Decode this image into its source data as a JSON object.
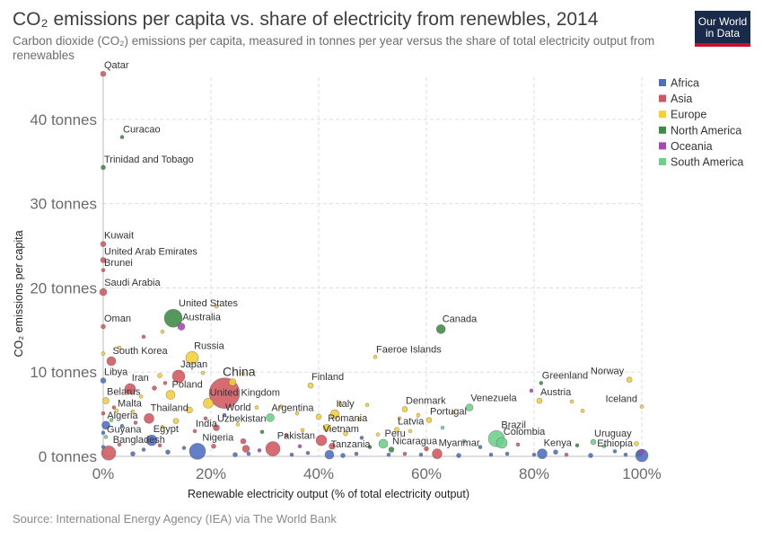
{
  "header": {
    "title": "CO₂ emissions per capita vs. share of electricity from renewbles, 2014",
    "subtitle": "Carbon dioxide (CO₂) emissions per capita, measured in tonnes per year versus the share of total electricity output from renewables",
    "logo_line1": "Our World",
    "logo_line2": "in Data"
  },
  "footer": {
    "source": "Source: International Energy Agency (IEA) via The World Bank"
  },
  "chart_data": {
    "type": "scatter",
    "xlabel": "Renewable electricity output (% of total electricity output)",
    "ylabel": "CO₂ emissions per capita",
    "xlim": [
      0,
      100
    ],
    "ylim": [
      0,
      45
    ],
    "x_ticks": [
      {
        "v": 0,
        "label": "0%"
      },
      {
        "v": 20,
        "label": "20%"
      },
      {
        "v": 40,
        "label": "40%"
      },
      {
        "v": 60,
        "label": "60%"
      },
      {
        "v": 80,
        "label": "80%"
      },
      {
        "v": 100,
        "label": "100%"
      }
    ],
    "y_ticks": [
      {
        "v": 0,
        "label": "0 tonnes"
      },
      {
        "v": 10,
        "label": "10 tonnes"
      },
      {
        "v": 20,
        "label": "20 tonnes"
      },
      {
        "v": 30,
        "label": "30 tonnes"
      },
      {
        "v": 40,
        "label": "40 tonnes"
      }
    ],
    "grid": true,
    "legend_position": "right",
    "regions": [
      {
        "name": "Africa",
        "color": "#4c6ec3"
      },
      {
        "name": "Asia",
        "color": "#d0565f"
      },
      {
        "name": "Europe",
        "color": "#f5cf35"
      },
      {
        "name": "North America",
        "color": "#3f8a46"
      },
      {
        "name": "Oceania",
        "color": "#a648b8"
      },
      {
        "name": "South America",
        "color": "#6ccf8a"
      }
    ],
    "labeled_points": [
      {
        "name": "Qatar",
        "x": 0,
        "y": 45.4,
        "region": "Asia",
        "size": 3
      },
      {
        "name": "Curacao",
        "x": 3.5,
        "y": 37.9,
        "region": "North America",
        "size": 2
      },
      {
        "name": "Trinidad and Tobago",
        "x": 0,
        "y": 34.3,
        "region": "North America",
        "size": 2.5
      },
      {
        "name": "Kuwait",
        "x": 0,
        "y": 25.2,
        "region": "Asia",
        "size": 3
      },
      {
        "name": "United Arab Emirates",
        "x": 0,
        "y": 23.3,
        "region": "Asia",
        "size": 3
      },
      {
        "name": "Brunei",
        "x": 0,
        "y": 22.1,
        "region": "Asia",
        "size": 2
      },
      {
        "name": "Saudi Arabia",
        "x": 0,
        "y": 19.5,
        "region": "Asia",
        "size": 4
      },
      {
        "name": "United States",
        "x": 13,
        "y": 16.4,
        "region": "North America",
        "size": 10
      },
      {
        "name": "Australia",
        "x": 14.5,
        "y": 15.4,
        "region": "Oceania",
        "size": 4
      },
      {
        "name": "Oman",
        "x": 0,
        "y": 15.4,
        "region": "Asia",
        "size": 2.5
      },
      {
        "name": "Canada",
        "x": 62.7,
        "y": 15.1,
        "region": "North America",
        "size": 5
      },
      {
        "name": "South Korea",
        "x": 1.5,
        "y": 11.3,
        "region": "Asia",
        "size": 5
      },
      {
        "name": "Russia",
        "x": 16.5,
        "y": 11.7,
        "region": "Europe",
        "size": 7
      },
      {
        "name": "Faeroe Islands",
        "x": 50.5,
        "y": 11.8,
        "region": "Europe",
        "size": 2
      },
      {
        "name": "Japan",
        "x": 14,
        "y": 9.5,
        "region": "Asia",
        "size": 7
      },
      {
        "name": "Libya",
        "x": 0,
        "y": 9.0,
        "region": "Africa",
        "size": 3
      },
      {
        "name": "China",
        "x": 22.5,
        "y": 7.5,
        "region": "Asia",
        "size": 17
      },
      {
        "name": "Finland",
        "x": 38.5,
        "y": 8.4,
        "region": "Europe",
        "size": 3
      },
      {
        "name": "Greenland",
        "x": 81.3,
        "y": 8.7,
        "region": "North America",
        "size": 2
      },
      {
        "name": "Norway",
        "x": 97.7,
        "y": 9.1,
        "region": "Europe",
        "size": 3
      },
      {
        "name": "Iran",
        "x": 5,
        "y": 8.0,
        "region": "Asia",
        "size": 6
      },
      {
        "name": "Poland",
        "x": 12.5,
        "y": 7.3,
        "region": "Europe",
        "size": 5
      },
      {
        "name": "Austria",
        "x": 81,
        "y": 6.6,
        "region": "Europe",
        "size": 3
      },
      {
        "name": "Iceland",
        "x": 100,
        "y": 5.9,
        "region": "Europe",
        "size": 2
      },
      {
        "name": "Belarus",
        "x": 0.5,
        "y": 6.6,
        "region": "Europe",
        "size": 3.5
      },
      {
        "name": "United Kingdom",
        "x": 19.5,
        "y": 6.3,
        "region": "Europe",
        "size": 5.5
      },
      {
        "name": "Denmark",
        "x": 56,
        "y": 5.6,
        "region": "Europe",
        "size": 3
      },
      {
        "name": "Venezuela",
        "x": 68,
        "y": 5.8,
        "region": "South America",
        "size": 4
      },
      {
        "name": "World",
        "x": 22.5,
        "y": 4.9,
        "region": "Africa",
        "size": 2
      },
      {
        "name": "Malta",
        "x": 2.5,
        "y": 5.4,
        "region": "Europe",
        "size": 2
      },
      {
        "name": "Thailand",
        "x": 8.5,
        "y": 4.5,
        "region": "Asia",
        "size": 5.5
      },
      {
        "name": "Argentina",
        "x": 31,
        "y": 4.6,
        "region": "South America",
        "size": 4.5
      },
      {
        "name": "Italy",
        "x": 43,
        "y": 5.0,
        "region": "Europe",
        "size": 5
      },
      {
        "name": "Portugal",
        "x": 60.5,
        "y": 4.3,
        "region": "Europe",
        "size": 3
      },
      {
        "name": "Algeria",
        "x": 0.5,
        "y": 3.7,
        "region": "Africa",
        "size": 4.5
      },
      {
        "name": "India",
        "x": 17,
        "y": 3.0,
        "region": "Asia",
        "size": 2
      },
      {
        "name": "Uzbekistan",
        "x": 21,
        "y": 3.4,
        "region": "Asia",
        "size": 3.5
      },
      {
        "name": "Romania",
        "x": 41.5,
        "y": 3.4,
        "region": "Europe",
        "size": 4
      },
      {
        "name": "Latvia",
        "x": 54.5,
        "y": 3.2,
        "region": "Europe",
        "size": 2.5
      },
      {
        "name": "Guyana",
        "x": 0.5,
        "y": 2.3,
        "region": "South America",
        "size": 2
      },
      {
        "name": "Egypt",
        "x": 9,
        "y": 1.9,
        "region": "Africa",
        "size": 6
      },
      {
        "name": "Vietnam",
        "x": 40.5,
        "y": 1.9,
        "region": "Asia",
        "size": 6
      },
      {
        "name": "Pakistan",
        "x": 31.5,
        "y": 0.9,
        "region": "Asia",
        "size": 8
      },
      {
        "name": "Brazil",
        "x": 73,
        "y": 2.1,
        "region": "South America",
        "size": 9
      },
      {
        "name": "Colombia",
        "x": 74,
        "y": 1.6,
        "region": "South America",
        "size": 6
      },
      {
        "name": "Bangladesh",
        "x": 1,
        "y": 0.4,
        "region": "Asia",
        "size": 8
      },
      {
        "name": "Nigeria",
        "x": 17.5,
        "y": 0.6,
        "region": "Africa",
        "size": 9
      },
      {
        "name": "Peru",
        "x": 52,
        "y": 1.5,
        "region": "South America",
        "size": 5
      },
      {
        "name": "Uruguay",
        "x": 91,
        "y": 1.7,
        "region": "South America",
        "size": 3
      },
      {
        "name": "Tanzania",
        "x": 42,
        "y": 0.2,
        "region": "Africa",
        "size": 5
      },
      {
        "name": "Nicaragua",
        "x": 53.5,
        "y": 0.8,
        "region": "North America",
        "size": 3
      },
      {
        "name": "Myanmar",
        "x": 62,
        "y": 0.3,
        "region": "Asia",
        "size": 5.5
      },
      {
        "name": "Kenya",
        "x": 81.5,
        "y": 0.3,
        "region": "Africa",
        "size": 5.5
      },
      {
        "name": "Ethiopia",
        "x": 100,
        "y": 0.1,
        "region": "Africa",
        "size": 7
      }
    ],
    "other_points": [
      {
        "x": 0,
        "y": 12.2,
        "region": "Europe",
        "size": 2
      },
      {
        "x": 3,
        "y": 12.9,
        "region": "Europe",
        "size": 2
      },
      {
        "x": 7.5,
        "y": 14.2,
        "region": "Asia",
        "size": 2
      },
      {
        "x": 11,
        "y": 14.8,
        "region": "Europe",
        "size": 2
      },
      {
        "x": 21,
        "y": 17.8,
        "region": "Europe",
        "size": 2
      },
      {
        "x": 10.5,
        "y": 9.6,
        "region": "Europe",
        "size": 2.5
      },
      {
        "x": 18.5,
        "y": 9.9,
        "region": "Europe",
        "size": 2
      },
      {
        "x": 11.5,
        "y": 8.7,
        "region": "Asia",
        "size": 2
      },
      {
        "x": 9.5,
        "y": 8.1,
        "region": "Asia",
        "size": 2.5
      },
      {
        "x": 24,
        "y": 8.8,
        "region": "Europe",
        "size": 4
      },
      {
        "x": 26,
        "y": 9.8,
        "region": "Europe",
        "size": 2
      },
      {
        "x": 7,
        "y": 7.1,
        "region": "Europe",
        "size": 2
      },
      {
        "x": 16,
        "y": 5.5,
        "region": "Europe",
        "size": 3.5
      },
      {
        "x": 28.5,
        "y": 5.8,
        "region": "Europe",
        "size": 2
      },
      {
        "x": 33,
        "y": 5.9,
        "region": "Europe",
        "size": 2
      },
      {
        "x": 36,
        "y": 5.1,
        "region": "Europe",
        "size": 2
      },
      {
        "x": 40,
        "y": 4.7,
        "region": "Europe",
        "size": 3
      },
      {
        "x": 44,
        "y": 6.2,
        "region": "Europe",
        "size": 2
      },
      {
        "x": 47.5,
        "y": 4.4,
        "region": "Europe",
        "size": 2
      },
      {
        "x": 49,
        "y": 6.1,
        "region": "Europe",
        "size": 2
      },
      {
        "x": 55,
        "y": 4.5,
        "region": "Europe",
        "size": 2
      },
      {
        "x": 58.5,
        "y": 4.9,
        "region": "Europe",
        "size": 2
      },
      {
        "x": 65,
        "y": 5.2,
        "region": "Europe",
        "size": 2
      },
      {
        "x": 79.5,
        "y": 7.8,
        "region": "Oceania",
        "size": 2
      },
      {
        "x": 89,
        "y": 5.4,
        "region": "Europe",
        "size": 2
      },
      {
        "x": 5.5,
        "y": 5.3,
        "region": "Europe",
        "size": 2
      },
      {
        "x": 13.5,
        "y": 4.2,
        "region": "Europe",
        "size": 3
      },
      {
        "x": 2,
        "y": 5.8,
        "region": "Asia",
        "size": 2
      },
      {
        "x": 0,
        "y": 5.1,
        "region": "Asia",
        "size": 2
      },
      {
        "x": 1.5,
        "y": 4.3,
        "region": "South America",
        "size": 2
      },
      {
        "x": 3.5,
        "y": 3.6,
        "region": "Africa",
        "size": 2
      },
      {
        "x": 6,
        "y": 4.0,
        "region": "Asia",
        "size": 2
      },
      {
        "x": 11,
        "y": 3.5,
        "region": "Europe",
        "size": 2
      },
      {
        "x": 19,
        "y": 4.5,
        "region": "Asia",
        "size": 2
      },
      {
        "x": 25,
        "y": 3.8,
        "region": "Europe",
        "size": 2
      },
      {
        "x": 29.5,
        "y": 2.9,
        "region": "North America",
        "size": 2
      },
      {
        "x": 34,
        "y": 2.5,
        "region": "Asia",
        "size": 2
      },
      {
        "x": 37,
        "y": 3.1,
        "region": "Europe",
        "size": 2
      },
      {
        "x": 45,
        "y": 2.7,
        "region": "Europe",
        "size": 2.5
      },
      {
        "x": 48,
        "y": 2.2,
        "region": "Africa",
        "size": 2
      },
      {
        "x": 51,
        "y": 2.6,
        "region": "Europe",
        "size": 2
      },
      {
        "x": 57,
        "y": 3.0,
        "region": "Europe",
        "size": 2
      },
      {
        "x": 63,
        "y": 3.4,
        "region": "South America",
        "size": 2
      },
      {
        "x": 67,
        "y": 1.8,
        "region": "South America",
        "size": 2
      },
      {
        "x": 70,
        "y": 1.1,
        "region": "Africa",
        "size": 2
      },
      {
        "x": 77,
        "y": 1.4,
        "region": "Asia",
        "size": 2
      },
      {
        "x": 84,
        "y": 0.5,
        "region": "Africa",
        "size": 2.5
      },
      {
        "x": 88,
        "y": 1.3,
        "region": "North America",
        "size": 2
      },
      {
        "x": 93,
        "y": 1.2,
        "region": "South America",
        "size": 2
      },
      {
        "x": 95,
        "y": 0.6,
        "region": "Africa",
        "size": 2
      },
      {
        "x": 99,
        "y": 1.5,
        "region": "Europe",
        "size": 2.5
      },
      {
        "x": 99.5,
        "y": 0.3,
        "region": "Africa",
        "size": 3
      },
      {
        "x": 97,
        "y": 0.2,
        "region": "Africa",
        "size": 2
      },
      {
        "x": 90.5,
        "y": 0.1,
        "region": "Africa",
        "size": 2.5
      },
      {
        "x": 86,
        "y": 0.2,
        "region": "Asia",
        "size": 2
      },
      {
        "x": 80,
        "y": 0.2,
        "region": "Africa",
        "size": 2
      },
      {
        "x": 75,
        "y": 0.3,
        "region": "Africa",
        "size": 2
      },
      {
        "x": 72,
        "y": 0.2,
        "region": "Africa",
        "size": 2
      },
      {
        "x": 66,
        "y": 0.1,
        "region": "Africa",
        "size": 2.5
      },
      {
        "x": 59,
        "y": 0.2,
        "region": "Africa",
        "size": 2
      },
      {
        "x": 56,
        "y": 0.3,
        "region": "Asia",
        "size": 2
      },
      {
        "x": 53,
        "y": 0.2,
        "region": "Africa",
        "size": 2
      },
      {
        "x": 47,
        "y": 0.3,
        "region": "Africa",
        "size": 2
      },
      {
        "x": 44.5,
        "y": 0.1,
        "region": "Africa",
        "size": 2.5
      },
      {
        "x": 38,
        "y": 0.4,
        "region": "Africa",
        "size": 2
      },
      {
        "x": 35,
        "y": 0.2,
        "region": "Africa",
        "size": 2
      },
      {
        "x": 27,
        "y": 0.3,
        "region": "Africa",
        "size": 2
      },
      {
        "x": 24.5,
        "y": 0.2,
        "region": "Africa",
        "size": 2.5
      },
      {
        "x": 20.5,
        "y": 1.2,
        "region": "Asia",
        "size": 2.5
      },
      {
        "x": 15,
        "y": 1.0,
        "region": "Africa",
        "size": 2
      },
      {
        "x": 12,
        "y": 0.5,
        "region": "Africa",
        "size": 2.5
      },
      {
        "x": 10.5,
        "y": 1.3,
        "region": "Asia",
        "size": 2
      },
      {
        "x": 7.5,
        "y": 0.8,
        "region": "Africa",
        "size": 2
      },
      {
        "x": 5.5,
        "y": 0.3,
        "region": "Africa",
        "size": 2.5
      },
      {
        "x": 3,
        "y": 1.4,
        "region": "Asia",
        "size": 2
      },
      {
        "x": 0,
        "y": 1.1,
        "region": "Africa",
        "size": 2
      },
      {
        "x": 0,
        "y": 2.8,
        "region": "Africa",
        "size": 2
      },
      {
        "x": 26,
        "y": 1.8,
        "region": "Asia",
        "size": 3
      },
      {
        "x": 26.5,
        "y": 0.9,
        "region": "Asia",
        "size": 4
      },
      {
        "x": 29,
        "y": 0.7,
        "region": "Oceania",
        "size": 2
      },
      {
        "x": 36.5,
        "y": 1.2,
        "region": "Oceania",
        "size": 2
      },
      {
        "x": 42.5,
        "y": 1.2,
        "region": "Asia",
        "size": 3.5
      },
      {
        "x": 49.5,
        "y": 1.1,
        "region": "North America",
        "size": 2
      },
      {
        "x": 60,
        "y": 0.9,
        "region": "Asia",
        "size": 2.5
      },
      {
        "x": 87,
        "y": 6.5,
        "region": "Europe",
        "size": 2
      },
      {
        "x": 100,
        "y": 0.5,
        "region": "Oceania",
        "size": 2.5
      }
    ]
  }
}
